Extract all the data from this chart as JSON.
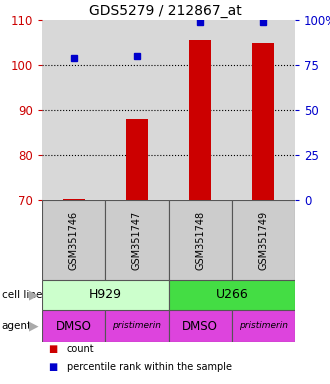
{
  "title": "GDS5279 / 212867_at",
  "samples": [
    "GSM351746",
    "GSM351747",
    "GSM351748",
    "GSM351749"
  ],
  "count_values": [
    70.2,
    88.0,
    105.5,
    105.0
  ],
  "percentile_values": [
    79,
    80,
    99,
    99
  ],
  "ylim_left": [
    70,
    110
  ],
  "ylim_right": [
    0,
    100
  ],
  "yticks_left": [
    70,
    80,
    90,
    100,
    110
  ],
  "yticks_right": [
    0,
    25,
    50,
    75,
    100
  ],
  "ytick_labels_right": [
    "0",
    "25",
    "50",
    "75",
    "100%"
  ],
  "bar_color": "#cc0000",
  "dot_color": "#0000cc",
  "bar_bottom": 70,
  "cell_line_defs": [
    {
      "label": "H929",
      "x0": -0.5,
      "x1": 1.5,
      "color": "#ccffcc"
    },
    {
      "label": "U266",
      "x0": 1.5,
      "x1": 3.5,
      "color": "#44dd44"
    }
  ],
  "agent_labels": [
    "DMSO",
    "pristimerin",
    "DMSO",
    "pristimerin"
  ],
  "agent_color": "#dd44dd",
  "bg_color": "#ffffff",
  "plot_bg": "#d8d8d8",
  "left_tick_color": "#cc0000",
  "right_tick_color": "#0000cc",
  "grid_yticks": [
    80,
    90,
    100
  ],
  "bar_width": 0.35,
  "xlim": [
    -0.5,
    3.5
  ]
}
